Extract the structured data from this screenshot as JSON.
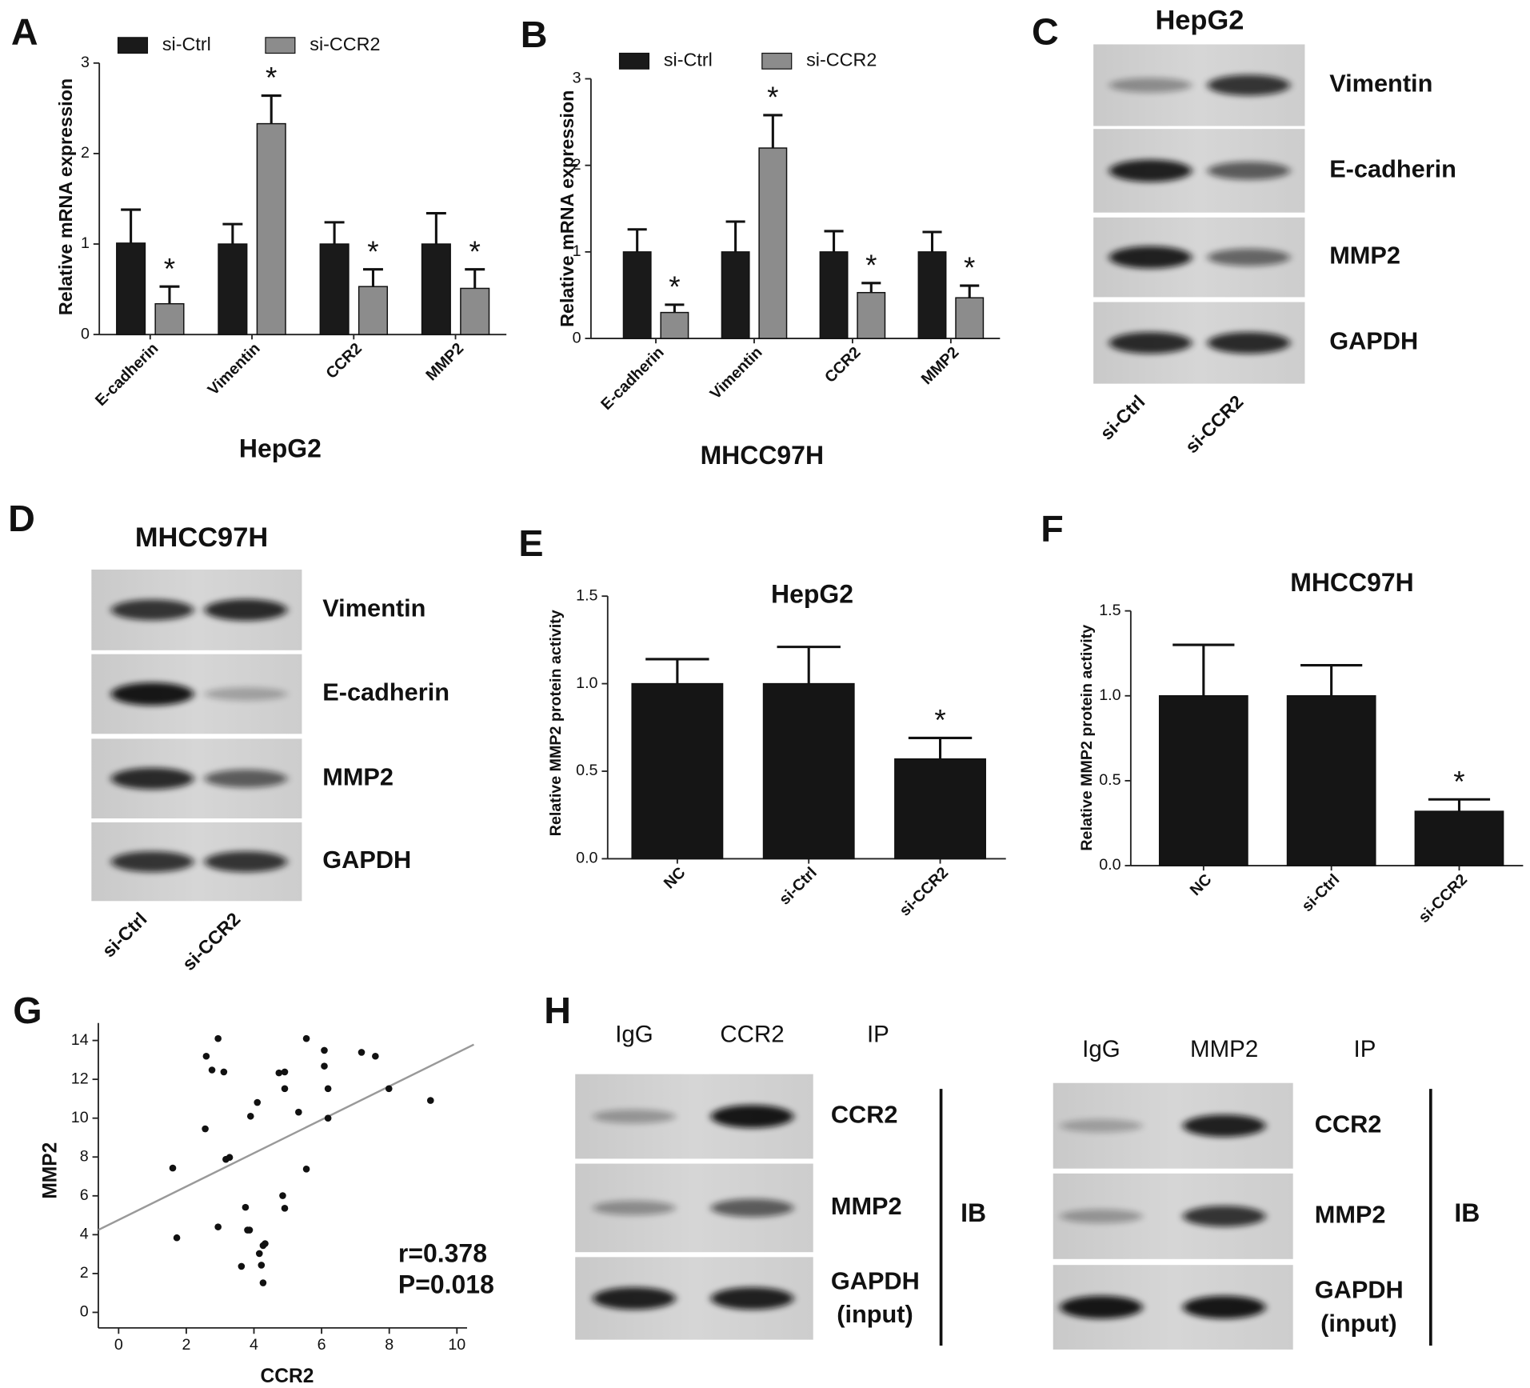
{
  "chart_data": [
    {
      "panel": "A",
      "type": "bar",
      "title": "HepG2",
      "y_label": "Relative mRNA expression",
      "categories": [
        "E-cadherin",
        "Vimentin",
        "CCR2",
        "MMP2"
      ],
      "series": [
        {
          "name": "si-Ctrl",
          "color": "#1a1a1a",
          "values": [
            1.01,
            1.0,
            1.0,
            1.0
          ],
          "errors": [
            0.37,
            0.22,
            0.24,
            0.34
          ]
        },
        {
          "name": "si-CCR2",
          "color": "#8c8c8c",
          "values": [
            0.34,
            2.33,
            0.53,
            0.51
          ],
          "errors": [
            0.19,
            0.31,
            0.19,
            0.21
          ],
          "annotations": [
            "*",
            "*",
            "*",
            "*"
          ]
        }
      ],
      "ylim": [
        0,
        3
      ],
      "yticks": [
        0,
        1,
        2,
        3
      ]
    },
    {
      "panel": "B",
      "type": "bar",
      "title": "MHCC97H",
      "y_label": "Relative mRNA expression",
      "categories": [
        "E-cadherin",
        "Vimentin",
        "CCR2",
        "MMP2"
      ],
      "series": [
        {
          "name": "si-Ctrl",
          "color": "#1a1a1a",
          "values": [
            1.0,
            1.0,
            1.0,
            1.0
          ],
          "errors": [
            0.26,
            0.35,
            0.24,
            0.23
          ]
        },
        {
          "name": "si-CCR2",
          "color": "#8c8c8c",
          "values": [
            0.3,
            2.2,
            0.53,
            0.47
          ],
          "errors": [
            0.09,
            0.38,
            0.11,
            0.14
          ],
          "annotations": [
            "*",
            "*",
            "*",
            "*"
          ]
        }
      ],
      "ylim": [
        0,
        3
      ],
      "yticks": [
        0,
        1,
        2,
        3
      ]
    },
    {
      "panel": "E",
      "type": "bar",
      "title": "HepG2",
      "y_label": "Relative MMP2 protein activity",
      "categories": [
        "NC",
        "si-Ctrl",
        "si-CCR2"
      ],
      "values": [
        1.0,
        1.0,
        0.57
      ],
      "errors": [
        0.14,
        0.21,
        0.12
      ],
      "annotations": [
        null,
        null,
        "*"
      ],
      "color": "#151515",
      "ylim": [
        0,
        1.5
      ],
      "yticks": [
        {
          "value": 0,
          "label": "0.0"
        },
        {
          "value": 0.5,
          "label": "0.5"
        },
        {
          "value": 1,
          "label": "1.0"
        },
        {
          "value": 1.5,
          "label": "1.5"
        }
      ]
    },
    {
      "panel": "F",
      "type": "bar",
      "title": "MHCC97H",
      "y_label": "Relative MMP2 protein activity",
      "categories": [
        "NC",
        "si-Ctrl",
        "si-CCR2"
      ],
      "values": [
        1.0,
        1.0,
        0.32
      ],
      "errors": [
        0.3,
        0.18,
        0.07
      ],
      "annotations": [
        null,
        null,
        "*"
      ],
      "color": "#151515",
      "ylim": [
        0,
        1.5
      ],
      "yticks": [
        {
          "value": 0,
          "label": "0.0"
        },
        {
          "value": 0.5,
          "label": "0.5"
        },
        {
          "value": 1,
          "label": "1.0"
        },
        {
          "value": 1.5,
          "label": "1.5"
        }
      ]
    },
    {
      "panel": "G",
      "type": "scatter",
      "x_label": "CCR2",
      "y_label": "MMP2",
      "color": "#111111",
      "x": [
        1.6,
        1.72,
        2.59,
        2.76,
        2.94,
        3.11,
        2.56,
        2.94,
        3.17,
        3.28,
        3.75,
        3.81,
        3.87,
        4.1,
        4.16,
        4.27,
        4.22,
        4.33,
        3.63,
        4.27,
        4.74,
        4.91,
        4.91,
        4.85,
        4.91,
        5.32,
        5.55,
        5.55,
        6.08,
        6.08,
        6.19,
        6.19,
        7.18,
        7.59,
        7.99,
        9.22,
        3.9
      ],
      "values": [
        7.43,
        3.84,
        13.19,
        12.48,
        14.1,
        12.38,
        9.45,
        4.4,
        7.88,
        7.98,
        5.41,
        4.24,
        4.24,
        10.81,
        3.03,
        3.44,
        2.43,
        3.54,
        2.37,
        1.52,
        12.33,
        12.38,
        11.52,
        6.01,
        5.36,
        10.31,
        7.38,
        14.1,
        13.49,
        12.68,
        11.52,
        10.0,
        13.39,
        13.19,
        11.52,
        10.91,
        10.1
      ],
      "fit": {
        "slope": 0.86,
        "intercept": 4.76
      },
      "fit_color": "#999999",
      "annotations": [
        "r=0.378",
        "P=0.018"
      ],
      "xlim": [
        -0.6,
        10.3
      ],
      "ylim": [
        -0.8,
        14.9
      ],
      "xticks": [
        0,
        2,
        4,
        6,
        8,
        10
      ],
      "yticks": [
        0,
        2,
        4,
        6,
        8,
        10,
        12,
        14
      ]
    }
  ],
  "blots": [
    {
      "panel": "C",
      "title": "HepG2",
      "lanes": [
        "si-Ctrl",
        "si-CCR2"
      ],
      "rows": [
        "Vimentin",
        "E-cadherin",
        "MMP2",
        "GAPDH"
      ]
    },
    {
      "panel": "D",
      "title": "MHCC97H",
      "lanes": [
        "si-Ctrl",
        "si-CCR2"
      ],
      "rows": [
        "Vimentin",
        "E-cadherin",
        "MMP2",
        "GAPDH"
      ]
    },
    {
      "panel": "H",
      "lanes": [
        "IgG",
        "CCR2"
      ],
      "lane_header": "IP",
      "rows": [
        [
          "CCR2"
        ],
        [
          "MMP2"
        ],
        [
          "GAPDH",
          "(input)"
        ]
      ],
      "side_label": "IB"
    },
    {
      "lanes": [
        "IgG",
        "MMP2"
      ],
      "lane_header": "IP",
      "rows": [
        [
          "CCR2"
        ],
        [
          "MMP2"
        ],
        [
          "GAPDH",
          "(input)"
        ]
      ],
      "side_label": "IB"
    }
  ]
}
